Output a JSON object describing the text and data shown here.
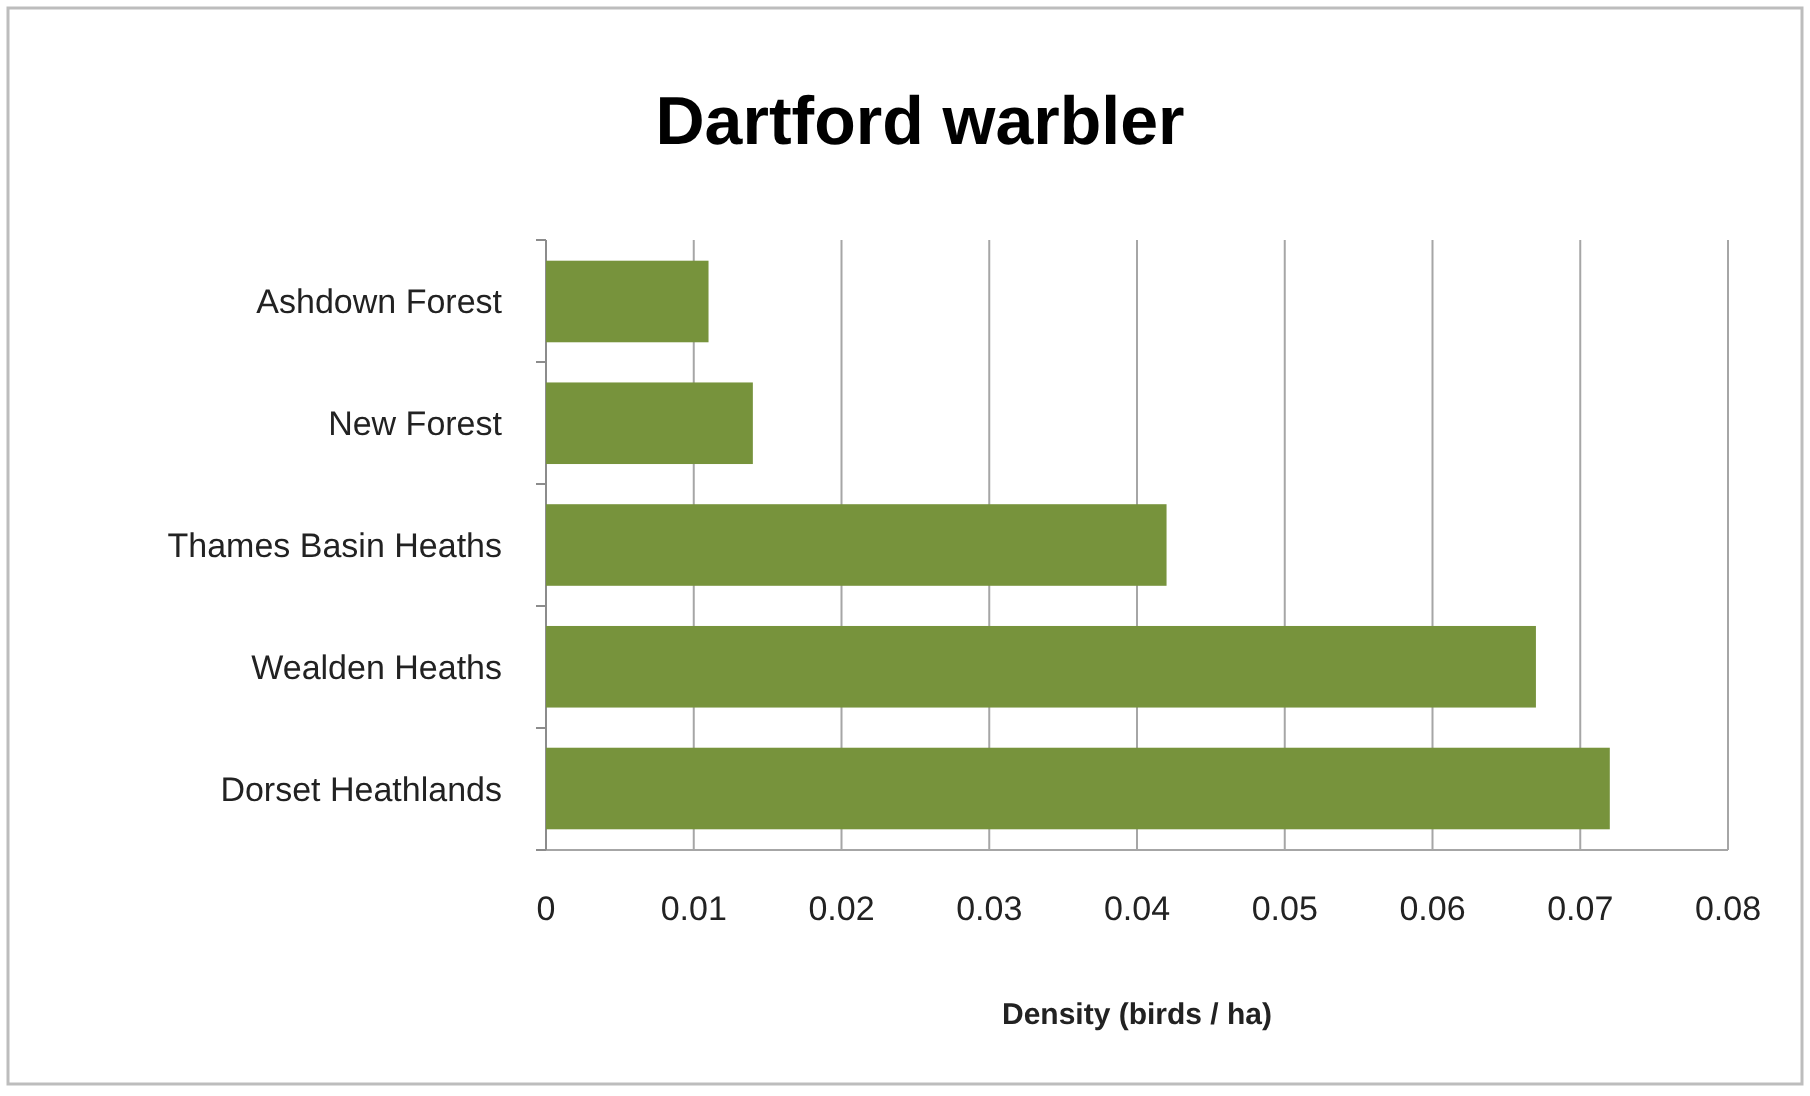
{
  "chart_data": {
    "type": "bar",
    "orientation": "horizontal",
    "title": "Dartford warbler",
    "xlabel": "Density (birds / ha)",
    "categories": [
      "Ashdown Forest",
      "New Forest",
      "Thames Basin Heaths",
      "Wealden Heaths",
      "Dorset Heathlands"
    ],
    "values": [
      0.011,
      0.014,
      0.042,
      0.067,
      0.072
    ],
    "color": "#77933c",
    "xlim": [
      0,
      0.08
    ],
    "xticks": [
      0,
      0.01,
      0.02,
      0.03,
      0.04,
      0.05,
      0.06,
      0.07,
      0.08
    ],
    "grid": "x"
  }
}
